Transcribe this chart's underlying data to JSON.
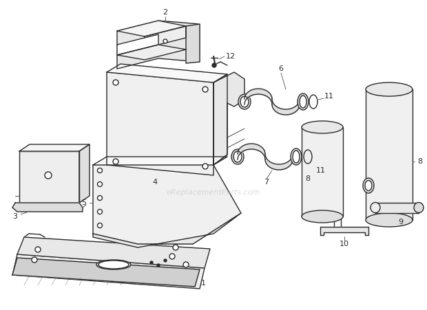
{
  "bg_color": "#ffffff",
  "line_color": "#2a2a2a",
  "watermark": "eReplacementParts.com",
  "watermark_color": "#bbbbbb",
  "fig_width": 6.2,
  "fig_height": 4.51,
  "dpi": 100
}
